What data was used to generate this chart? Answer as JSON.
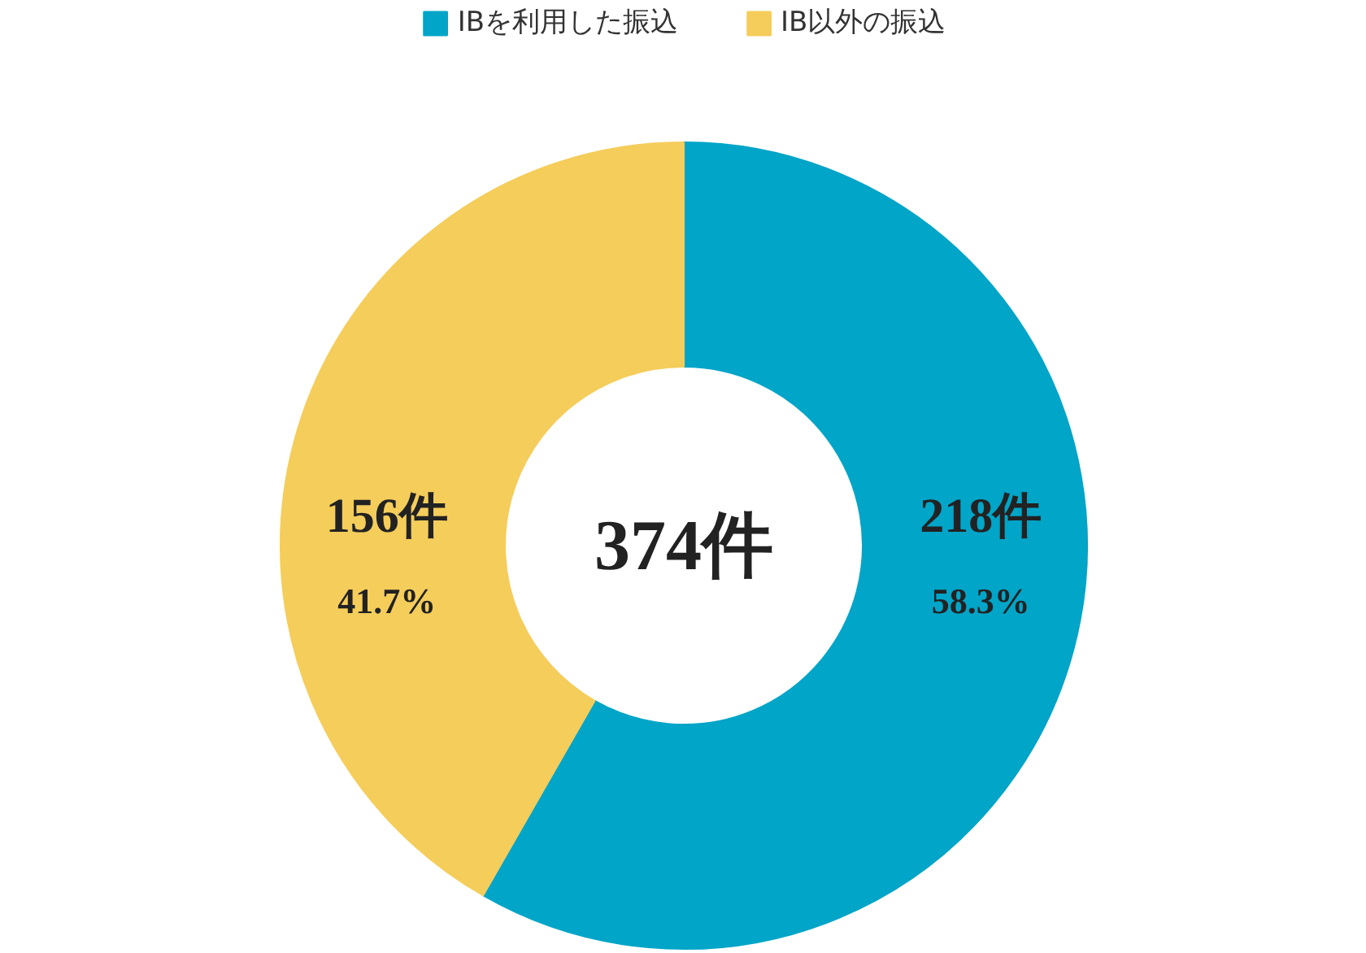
{
  "chart_data": {
    "type": "donut",
    "categories": [
      "IBを利用した振込",
      "IB以外の振込"
    ],
    "values": [
      218,
      156
    ],
    "colors": [
      "#00a5c8",
      "#f5cd5b"
    ],
    "value_labels": [
      "218件",
      "156件"
    ],
    "annotations": [
      {
        "text": "58.3%",
        "x": "IBを利用した振込"
      },
      {
        "text": "41.7%",
        "x": "IB以外の振込"
      }
    ],
    "totals": [
      "374件"
    ],
    "legend": "top"
  }
}
